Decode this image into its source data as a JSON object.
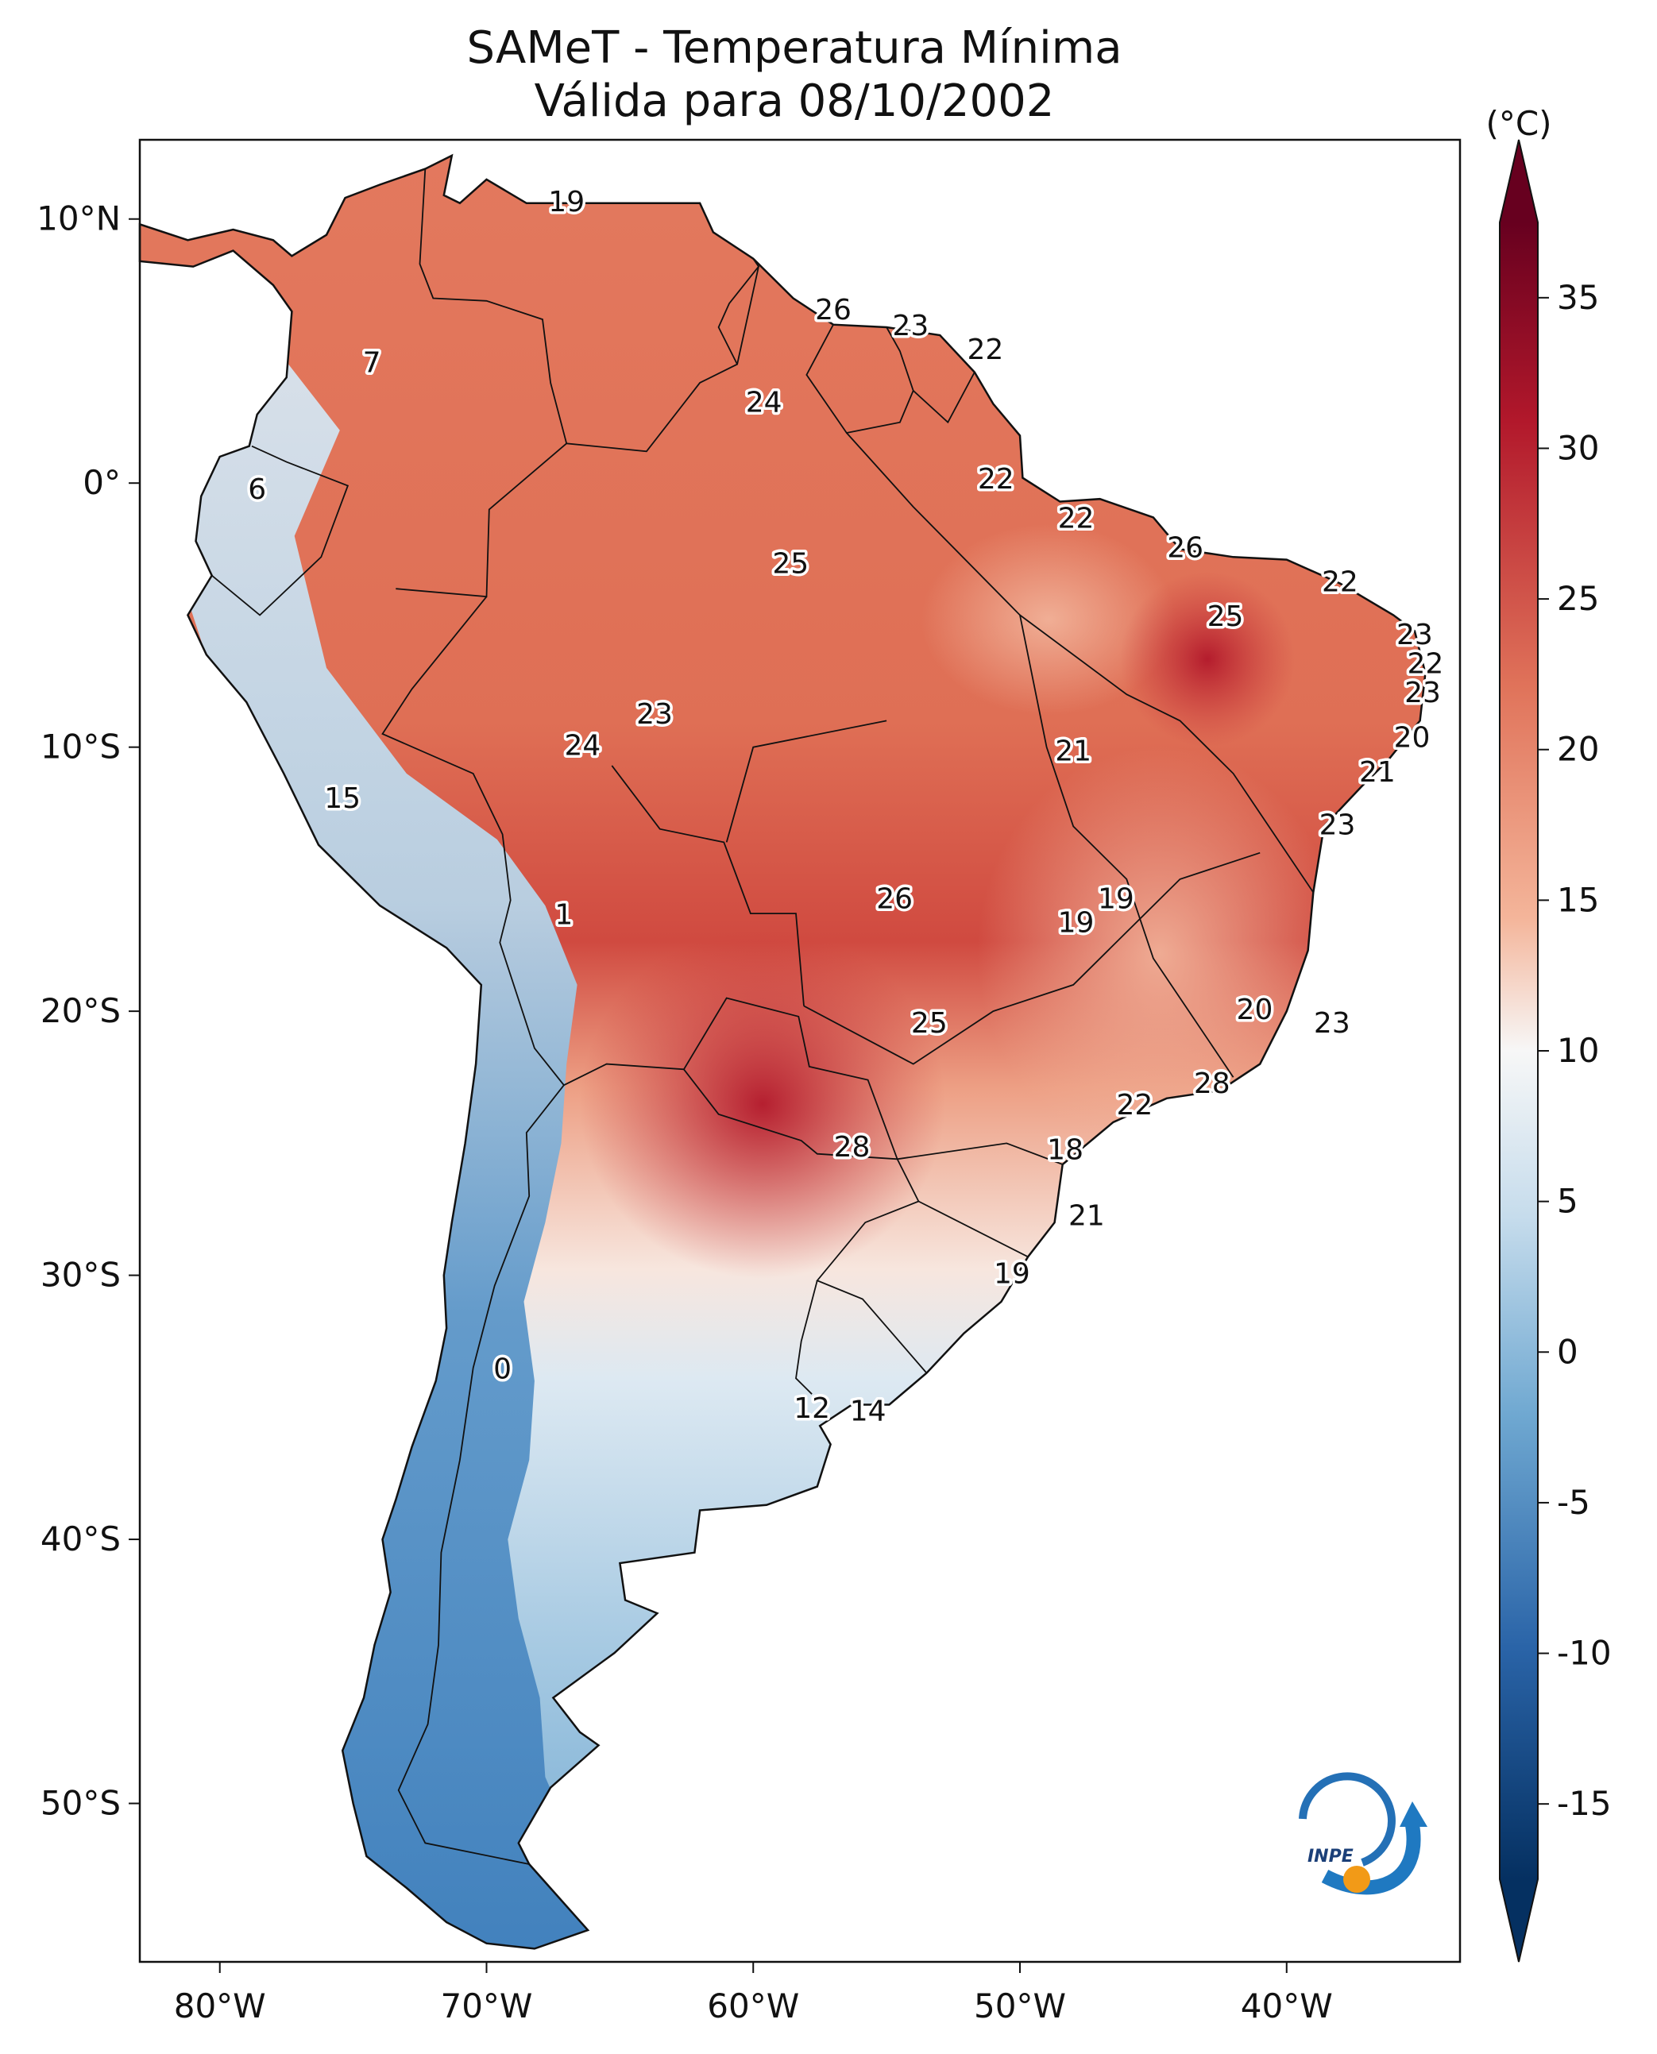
{
  "title": {
    "line1": "SAMeT - Temperatura Mínima",
    "line2": "Válida para 08/10/2002"
  },
  "axes": {
    "lon_ticks": [
      "80°W",
      "70°W",
      "60°W",
      "50°W",
      "40°W"
    ],
    "lat_ticks": [
      "10°N",
      "0°",
      "10°S",
      "20°S",
      "30°S",
      "40°S",
      "50°S"
    ]
  },
  "colorbar": {
    "unit": "(°C)",
    "ticks": [
      "35",
      "30",
      "25",
      "20",
      "15",
      "10",
      "5",
      "0",
      "-5",
      "-10",
      "-15"
    ]
  },
  "map_labels": [
    {
      "text": "19",
      "lon": -67,
      "lat": 10.6
    },
    {
      "text": "26",
      "lon": -57,
      "lat": 6.5
    },
    {
      "text": "23",
      "lon": -54.1,
      "lat": 5.9
    },
    {
      "text": "22",
      "lon": -51.3,
      "lat": 5.0
    },
    {
      "text": "7",
      "lon": -74.3,
      "lat": 4.5
    },
    {
      "text": "24",
      "lon": -59.6,
      "lat": 3.0
    },
    {
      "text": "6",
      "lon": -78.6,
      "lat": -0.3
    },
    {
      "text": "22",
      "lon": -50.9,
      "lat": 0.1
    },
    {
      "text": "22",
      "lon": -47.9,
      "lat": -1.4
    },
    {
      "text": "26",
      "lon": -43.8,
      "lat": -2.5
    },
    {
      "text": "25",
      "lon": -58.6,
      "lat": -3.1
    },
    {
      "text": "22",
      "lon": -38.0,
      "lat": -3.8
    },
    {
      "text": "25",
      "lon": -42.3,
      "lat": -5.1
    },
    {
      "text": "23",
      "lon": -35.2,
      "lat": -5.8
    },
    {
      "text": "22",
      "lon": -34.8,
      "lat": -6.9
    },
    {
      "text": "23",
      "lon": -34.9,
      "lat": -8.0
    },
    {
      "text": "23",
      "lon": -63.7,
      "lat": -8.8
    },
    {
      "text": "20",
      "lon": -35.3,
      "lat": -9.7
    },
    {
      "text": "24",
      "lon": -66.4,
      "lat": -10.0
    },
    {
      "text": "21",
      "lon": -48.0,
      "lat": -10.2
    },
    {
      "text": "21",
      "lon": -36.6,
      "lat": -11.0
    },
    {
      "text": "15",
      "lon": -75.4,
      "lat": -12.0
    },
    {
      "text": "23",
      "lon": -38.1,
      "lat": -13.0
    },
    {
      "text": "26",
      "lon": -54.7,
      "lat": -15.8
    },
    {
      "text": "19",
      "lon": -46.4,
      "lat": -15.8
    },
    {
      "text": "1",
      "lon": -67.1,
      "lat": -16.4
    },
    {
      "text": "19",
      "lon": -47.9,
      "lat": -16.7
    },
    {
      "text": "20",
      "lon": -41.2,
      "lat": -20.0
    },
    {
      "text": "25",
      "lon": -53.4,
      "lat": -20.5
    },
    {
      "text": "23",
      "lon": -38.3,
      "lat": -20.5
    },
    {
      "text": "28",
      "lon": -42.8,
      "lat": -22.8
    },
    {
      "text": "22",
      "lon": -45.7,
      "lat": -23.6
    },
    {
      "text": "28",
      "lon": -56.3,
      "lat": -25.2
    },
    {
      "text": "18",
      "lon": -48.3,
      "lat": -25.3
    },
    {
      "text": "21",
      "lon": -47.5,
      "lat": -27.8
    },
    {
      "text": "19",
      "lon": -50.3,
      "lat": -30.0
    },
    {
      "text": "0",
      "lon": -69.4,
      "lat": -33.6
    },
    {
      "text": "12",
      "lon": -57.8,
      "lat": -35.1
    },
    {
      "text": "14",
      "lon": -55.7,
      "lat": -35.2
    }
  ],
  "colors": {
    "warm_deep": "#b2182b",
    "warm_mid": "#e0735a",
    "warm_light": "#f2b095",
    "neutral": "#f7f7f7",
    "cool_light": "#c6dcec",
    "cool_mid": "#6fa8d1",
    "cool_deep": "#2a64a8"
  },
  "logo": {
    "text": "INPE",
    "icon": "inpe-logo"
  }
}
